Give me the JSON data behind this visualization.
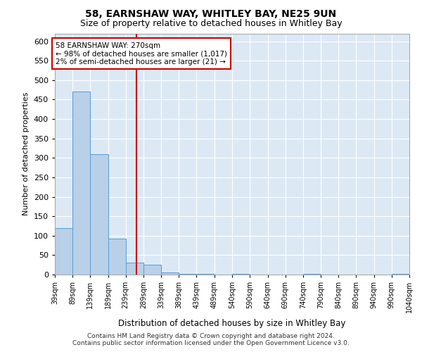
{
  "title": "58, EARNSHAW WAY, WHITLEY BAY, NE25 9UN",
  "subtitle": "Size of property relative to detached houses in Whitley Bay",
  "xlabel": "Distribution of detached houses by size in Whitley Bay",
  "ylabel": "Number of detached properties",
  "annotation_line1": "58 EARNSHAW WAY: 270sqm",
  "annotation_line2": "← 98% of detached houses are smaller (1,017)",
  "annotation_line3": "2% of semi-detached houses are larger (21) →",
  "property_size": 270,
  "footer_line1": "Contains HM Land Registry data © Crown copyright and database right 2024.",
  "footer_line2": "Contains public sector information licensed under the Open Government Licence v3.0.",
  "bar_edges": [
    39,
    89,
    139,
    189,
    239,
    289,
    339,
    389,
    439,
    489,
    540,
    590,
    640,
    690,
    740,
    790,
    840,
    890,
    940,
    990,
    1040
  ],
  "bar_heights": [
    120,
    470,
    310,
    93,
    30,
    25,
    5,
    2,
    1,
    0,
    1,
    0,
    0,
    0,
    1,
    0,
    0,
    0,
    0,
    1
  ],
  "bar_color": "#b8d0e8",
  "bar_edge_color": "#5b9bd5",
  "vline_color": "#cc0000",
  "background_color": "#dce9f5",
  "fig_background_color": "#ffffff",
  "ylim": [
    0,
    620
  ],
  "yticks": [
    0,
    50,
    100,
    150,
    200,
    250,
    300,
    350,
    400,
    450,
    500,
    550,
    600
  ],
  "annotation_box_color": "#cc0000",
  "grid_color": "#ffffff",
  "title_fontsize": 10,
  "subtitle_fontsize": 9
}
